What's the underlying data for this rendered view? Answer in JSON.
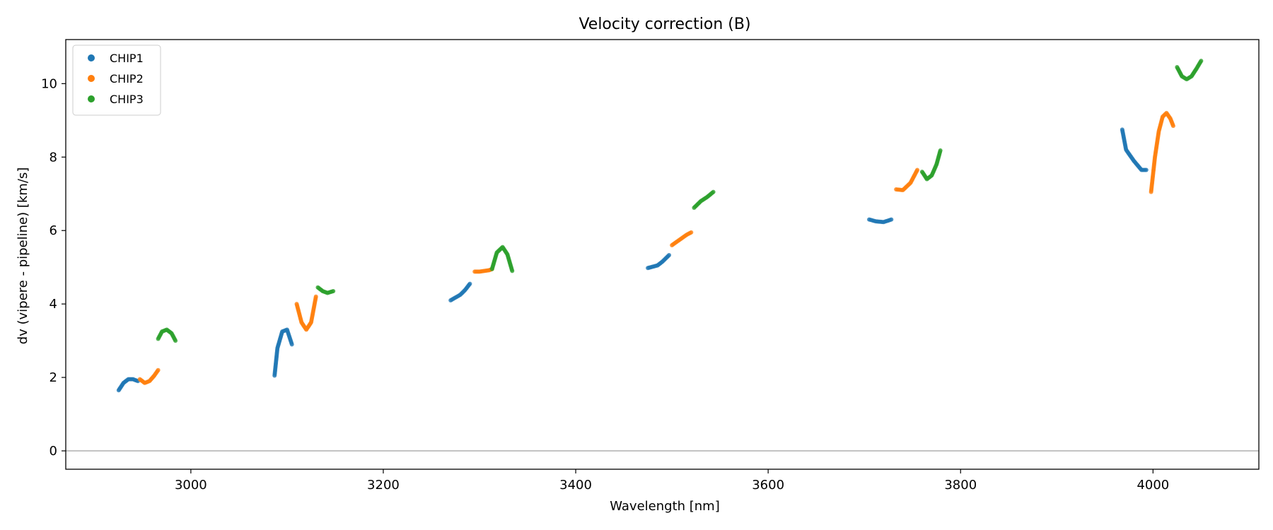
{
  "chart_data": {
    "type": "scatter",
    "title": "Velocity correction (B)",
    "xlabel": "Wavelength [nm]",
    "ylabel": "dv (vipere - pipeline) [km/s]",
    "xlim": [
      2870,
      4110
    ],
    "ylim": [
      -0.5,
      11.2
    ],
    "xticks": [
      3000,
      3200,
      3400,
      3600,
      3800,
      4000
    ],
    "yticks": [
      0,
      2,
      4,
      6,
      8,
      10
    ],
    "grid": false,
    "legend_position": "top-left",
    "zero_line": true,
    "series": [
      {
        "name": "CHIP1",
        "color": "#1f77b4",
        "segments": [
          {
            "x": [
              2925,
              2930,
              2935,
              2940,
              2945
            ],
            "y": [
              1.65,
              1.85,
              1.95,
              1.95,
              1.9
            ]
          },
          {
            "x": [
              3087,
              3090,
              3095,
              3100,
              3105
            ],
            "y": [
              2.05,
              2.8,
              3.25,
              3.3,
              2.9
            ]
          },
          {
            "x": [
              3270,
              3280,
              3285,
              3290
            ],
            "y": [
              4.1,
              4.25,
              4.38,
              4.55
            ]
          },
          {
            "x": [
              3475,
              3485,
              3490,
              3497
            ],
            "y": [
              4.98,
              5.05,
              5.15,
              5.33
            ]
          },
          {
            "x": [
              3705,
              3712,
              3720,
              3728
            ],
            "y": [
              6.3,
              6.25,
              6.23,
              6.3
            ]
          },
          {
            "x": [
              3968,
              3972,
              3980,
              3988,
              3993
            ],
            "y": [
              8.75,
              8.2,
              7.9,
              7.65,
              7.65
            ]
          }
        ]
      },
      {
        "name": "CHIP2",
        "color": "#ff7f0e",
        "segments": [
          {
            "x": [
              2947,
              2952,
              2957,
              2962,
              2966
            ],
            "y": [
              1.95,
              1.85,
              1.9,
              2.05,
              2.2
            ]
          },
          {
            "x": [
              3110,
              3115,
              3120,
              3125,
              3130
            ],
            "y": [
              4.0,
              3.5,
              3.3,
              3.5,
              4.2
            ]
          },
          {
            "x": [
              3295,
              3300,
              3305,
              3310,
              3313
            ],
            "y": [
              4.88,
              4.88,
              4.9,
              4.92,
              4.95
            ]
          },
          {
            "x": [
              3500,
              3508,
              3515,
              3520
            ],
            "y": [
              5.6,
              5.75,
              5.88,
              5.95
            ]
          },
          {
            "x": [
              3733,
              3740,
              3748,
              3755
            ],
            "y": [
              7.12,
              7.1,
              7.3,
              7.65
            ]
          },
          {
            "x": [
              3998,
              4002,
              4006,
              4010,
              4014,
              4018,
              4021
            ],
            "y": [
              7.05,
              8.0,
              8.7,
              9.1,
              9.2,
              9.05,
              8.85
            ]
          }
        ]
      },
      {
        "name": "CHIP3",
        "color": "#2ca02c",
        "segments": [
          {
            "x": [
              2966,
              2970,
              2975,
              2980,
              2984
            ],
            "y": [
              3.05,
              3.25,
              3.3,
              3.2,
              3.0
            ]
          },
          {
            "x": [
              3132,
              3137,
              3142,
              3148
            ],
            "y": [
              4.45,
              4.35,
              4.3,
              4.35
            ]
          },
          {
            "x": [
              3313,
              3318,
              3324,
              3329,
              3334
            ],
            "y": [
              4.95,
              5.4,
              5.55,
              5.35,
              4.9
            ]
          },
          {
            "x": [
              3523,
              3530,
              3537,
              3543
            ],
            "y": [
              6.62,
              6.8,
              6.92,
              7.05
            ]
          },
          {
            "x": [
              3760,
              3765,
              3770,
              3775,
              3779
            ],
            "y": [
              7.6,
              7.4,
              7.5,
              7.8,
              8.18
            ]
          },
          {
            "x": [
              4025,
              4030,
              4035,
              4040,
              4045,
              4050
            ],
            "y": [
              10.45,
              10.2,
              10.12,
              10.2,
              10.4,
              10.62
            ]
          }
        ]
      }
    ]
  }
}
